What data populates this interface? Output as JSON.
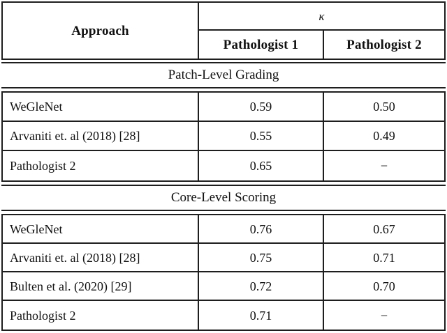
{
  "header": {
    "approach_label": "Approach",
    "kappa_label": "κ",
    "pathologist1_label": "Pathologist 1",
    "pathologist2_label": "Pathologist 2"
  },
  "sections": [
    {
      "title": "Patch-Level Grading",
      "rows": [
        {
          "approach": "WeGleNet",
          "p1": "0.59",
          "p2": "0.50"
        },
        {
          "approach": "Arvaniti et. al (2018) [28]",
          "p1": "0.55",
          "p2": "0.49"
        },
        {
          "approach": "Pathologist 2",
          "p1": "0.65",
          "p2": "−"
        }
      ]
    },
    {
      "title": "Core-Level Scoring",
      "rows": [
        {
          "approach": "WeGleNet",
          "p1": "0.76",
          "p2": "0.67"
        },
        {
          "approach": "Arvaniti et. al (2018) [28]",
          "p1": "0.75",
          "p2": "0.71"
        },
        {
          "approach": "Bulten et al. (2020) [29]",
          "p1": "0.72",
          "p2": "0.70"
        },
        {
          "approach": "Pathologist 2",
          "p1": "0.71",
          "p2": "−"
        }
      ]
    }
  ],
  "colors": {
    "text": "#111111",
    "border": "#1e1e1e",
    "background": "#ffffff"
  }
}
